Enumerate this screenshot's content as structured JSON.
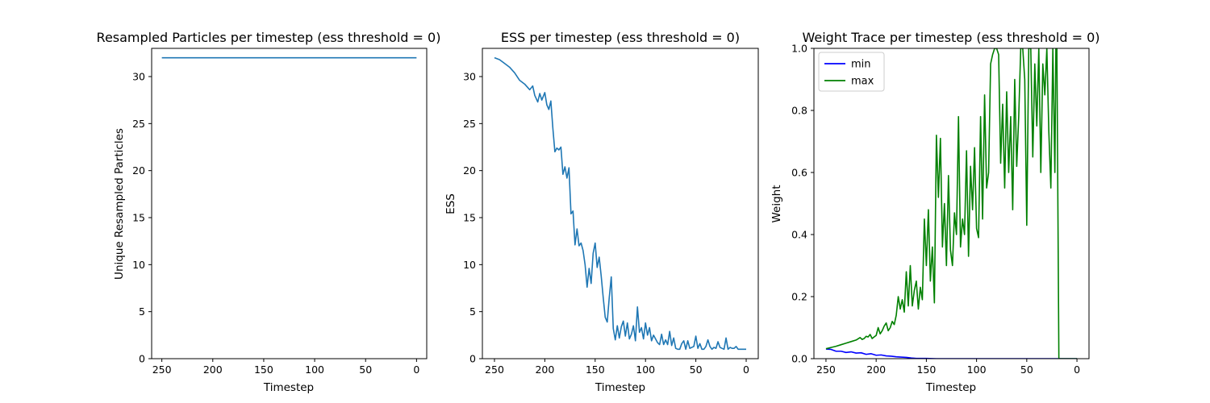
{
  "chart_data": [
    {
      "type": "line",
      "title": "Resampled Particles per timestep (ess threshold = 0)",
      "xlabel": "Timestep",
      "ylabel": "Unique Resampled Particles",
      "xlim": [
        260,
        -10
      ],
      "ylim": [
        0,
        33
      ],
      "x_inverted": true,
      "xticks": [
        250,
        200,
        150,
        100,
        50,
        0
      ],
      "yticks": [
        0,
        5,
        10,
        15,
        20,
        25,
        30
      ],
      "grid": false,
      "series": [
        {
          "color": "#1f77b4",
          "x": [
            250,
            0
          ],
          "y": [
            32,
            32
          ]
        }
      ]
    },
    {
      "type": "line",
      "title": "ESS per timestep (ess threshold = 0)",
      "xlabel": "Timestep",
      "ylabel": "ESS",
      "xlim": [
        262,
        -12
      ],
      "ylim": [
        0,
        33
      ],
      "x_inverted": true,
      "xticks": [
        250,
        200,
        150,
        100,
        50,
        0
      ],
      "yticks": [
        0,
        5,
        10,
        15,
        20,
        25,
        30
      ],
      "grid": false,
      "series": [
        {
          "color": "#1f77b4",
          "x": [
            250,
            245,
            240,
            235,
            230,
            225,
            220,
            215,
            212,
            210,
            207,
            205,
            203,
            200,
            198,
            196,
            194,
            192,
            190,
            188,
            186,
            184,
            182,
            180,
            178,
            176,
            174,
            172,
            170,
            168,
            166,
            164,
            162,
            160,
            158,
            156,
            154,
            152,
            150,
            148,
            146,
            144,
            142,
            140,
            138,
            136,
            134,
            132,
            130,
            128,
            126,
            124,
            122,
            120,
            118,
            116,
            114,
            112,
            110,
            108,
            106,
            104,
            102,
            100,
            98,
            96,
            94,
            92,
            90,
            88,
            86,
            84,
            82,
            80,
            78,
            76,
            74,
            72,
            70,
            68,
            66,
            64,
            62,
            60,
            58,
            56,
            54,
            52,
            50,
            48,
            46,
            44,
            42,
            40,
            38,
            36,
            34,
            32,
            30,
            28,
            26,
            24,
            22,
            20,
            18,
            16,
            14,
            12,
            10,
            8,
            6,
            4,
            2,
            0
          ],
          "y": [
            32,
            31.8,
            31.4,
            31,
            30.4,
            29.6,
            29.2,
            28.6,
            29,
            28,
            27.3,
            28.2,
            27.5,
            28.3,
            27,
            26.5,
            27.4,
            24.5,
            22,
            22.4,
            22.2,
            22.5,
            19.6,
            20.4,
            19.2,
            20.3,
            15.4,
            15.7,
            12.1,
            13.8,
            12,
            12.3,
            11.5,
            10,
            7.6,
            9.6,
            8,
            11.2,
            12.3,
            9.7,
            10.8,
            8.8,
            6.5,
            4.4,
            3.9,
            6.5,
            8.7,
            3.2,
            2,
            3.5,
            2.2,
            3.4,
            4,
            2.4,
            3.8,
            2.1,
            2.6,
            3.5,
            1.9,
            5.5,
            2.8,
            3.3,
            2.1,
            3.8,
            2.5,
            3.3,
            1.9,
            2.5,
            2.1,
            1.7,
            1.5,
            2.6,
            1.5,
            2,
            1.5,
            2.9,
            1.4,
            2.2,
            1.1,
            1,
            1,
            1.6,
            1.9,
            1,
            1.9,
            1.1,
            1.2,
            1.3,
            2.4,
            1.1,
            1.6,
            1,
            1,
            1.3,
            2,
            1.3,
            1,
            1.2,
            1.1,
            1.8,
            1.2,
            1.1,
            1,
            2.2,
            1,
            1.2,
            1.1,
            1.1,
            1.3,
            1,
            1,
            1,
            1,
            1
          ]
        }
      ]
    },
    {
      "type": "line",
      "title": "Weight Trace per timestep (ess threshold = 0)",
      "xlabel": "Timestep",
      "ylabel": "Weight",
      "xlim": [
        262,
        -12
      ],
      "ylim": [
        0,
        1
      ],
      "x_inverted": true,
      "xticks": [
        250,
        200,
        150,
        100,
        50,
        0
      ],
      "yticks": [
        0.0,
        0.2,
        0.4,
        0.6,
        0.8,
        1.0
      ],
      "ytick_labels": [
        "0.0",
        "0.2",
        "0.4",
        "0.6",
        "0.8",
        "1.0"
      ],
      "grid": false,
      "legend": {
        "placement": "top-left",
        "entries": [
          "min",
          "max"
        ]
      },
      "series": [
        {
          "name": "min",
          "color": "#0000ff",
          "x": [
            250,
            245,
            240,
            235,
            230,
            225,
            220,
            215,
            210,
            205,
            200,
            195,
            190,
            185,
            180,
            175,
            170,
            165,
            160,
            150,
            140,
            120,
            100,
            80,
            60,
            40,
            20,
            0
          ],
          "y": [
            0.031,
            0.03,
            0.024,
            0.024,
            0.02,
            0.022,
            0.018,
            0.019,
            0.014,
            0.016,
            0.011,
            0.012,
            0.009,
            0.008,
            0.006,
            0.005,
            0.004,
            0.002,
            0.001,
            0.001,
            0,
            0,
            0,
            0,
            0,
            0,
            0,
            0
          ]
        },
        {
          "name": "max",
          "color": "#008000",
          "x": [
            250,
            245,
            240,
            235,
            230,
            225,
            220,
            216,
            214,
            212,
            210,
            208,
            206,
            204,
            202,
            200,
            198,
            196,
            194,
            192,
            190,
            188,
            186,
            184,
            182,
            180,
            178,
            176,
            174,
            172,
            170,
            168,
            166,
            164,
            162,
            160,
            158,
            156,
            154,
            152,
            150,
            148,
            146,
            144,
            142,
            140,
            138,
            136,
            134,
            132,
            130,
            128,
            126,
            124,
            122,
            120,
            118,
            116,
            114,
            112,
            110,
            108,
            106,
            104,
            102,
            100,
            98,
            96,
            94,
            92,
            90,
            88,
            86,
            84,
            82,
            80,
            78,
            76,
            74,
            72,
            70,
            68,
            66,
            64,
            62,
            60,
            58,
            56,
            54,
            52,
            50,
            48,
            46,
            44,
            42,
            40,
            38,
            36,
            34,
            32,
            30,
            28,
            26,
            24,
            22,
            21,
            20,
            18,
            16,
            14,
            12,
            10,
            8,
            6,
            4,
            2,
            0
          ],
          "y": [
            0.032,
            0.036,
            0.04,
            0.045,
            0.05,
            0.055,
            0.06,
            0.068,
            0.062,
            0.065,
            0.072,
            0.07,
            0.078,
            0.065,
            0.07,
            0.075,
            0.1,
            0.08,
            0.09,
            0.105,
            0.115,
            0.09,
            0.1,
            0.12,
            0.11,
            0.14,
            0.2,
            0.16,
            0.19,
            0.15,
            0.28,
            0.17,
            0.3,
            0.17,
            0.22,
            0.25,
            0.16,
            0.23,
            0.19,
            0.45,
            0.3,
            0.48,
            0.25,
            0.36,
            0.18,
            0.72,
            0.52,
            0.71,
            0.36,
            0.5,
            0.3,
            0.59,
            0.35,
            0.3,
            0.47,
            0.4,
            0.78,
            0.36,
            0.45,
            0.4,
            0.67,
            0.33,
            0.62,
            0.48,
            0.68,
            0.42,
            0.39,
            0.78,
            0.45,
            0.85,
            0.55,
            0.6,
            0.95,
            0.98,
            1,
            1,
            0.98,
            0.63,
            0.82,
            0.55,
            0.86,
            0.6,
            0.78,
            0.48,
            0.9,
            0.62,
            0.78,
            1,
            1,
            0.9,
            0.43,
            1,
            1,
            0.65,
            0.95,
            0.75,
            1,
            0.6,
            0.95,
            0.85,
            1,
            0.73,
            0.55,
            1,
            0.6,
            1,
            1,
            0,
            0,
            0,
            0,
            0,
            0,
            0,
            0,
            0,
            0
          ]
        }
      ]
    }
  ]
}
